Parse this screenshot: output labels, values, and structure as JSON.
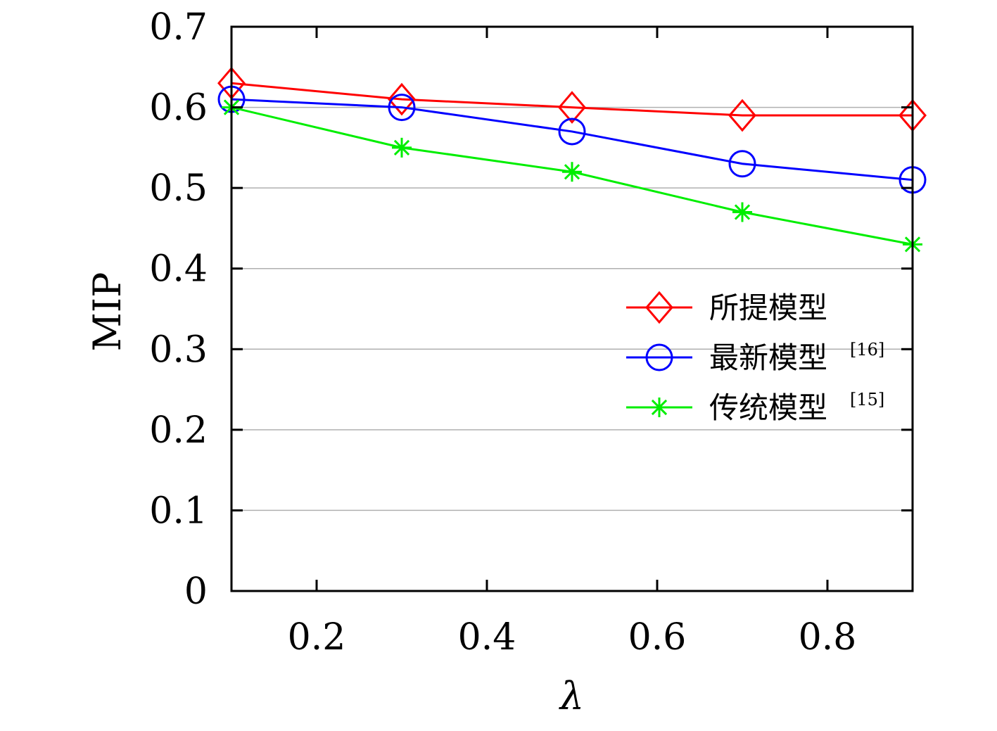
{
  "chart_data": {
    "type": "line",
    "title": "",
    "xlabel": "λ",
    "ylabel": "MIP",
    "xlim": [
      0.1,
      0.9
    ],
    "ylim": [
      0,
      0.7
    ],
    "x": [
      0.1,
      0.3,
      0.5,
      0.7,
      0.9
    ],
    "xticks": [
      0.2,
      0.4,
      0.6,
      0.8
    ],
    "xtick_labels": [
      "0.2",
      "0.4",
      "0.6",
      "0.8"
    ],
    "yticks": [
      0,
      0.1,
      0.2,
      0.3,
      0.4,
      0.5,
      0.6,
      0.7
    ],
    "ytick_labels": [
      "0",
      "0.1",
      "0.2",
      "0.3",
      "0.4",
      "0.5",
      "0.6",
      "0.7"
    ],
    "grid": "horizontal",
    "legend_position": "right",
    "series": [
      {
        "name": "所提模型",
        "ref": "",
        "color": "#ff0000",
        "marker": "diamond",
        "values": [
          0.63,
          0.61,
          0.6,
          0.59,
          0.59
        ]
      },
      {
        "name": "最新模型",
        "ref": "[16]",
        "color": "#0000ff",
        "marker": "circle",
        "values": [
          0.61,
          0.6,
          0.57,
          0.53,
          0.51
        ]
      },
      {
        "name": "传统模型",
        "ref": "[15]",
        "color": "#00ee00",
        "marker": "asterisk",
        "values": [
          0.6,
          0.55,
          0.52,
          0.47,
          0.43
        ]
      }
    ]
  }
}
